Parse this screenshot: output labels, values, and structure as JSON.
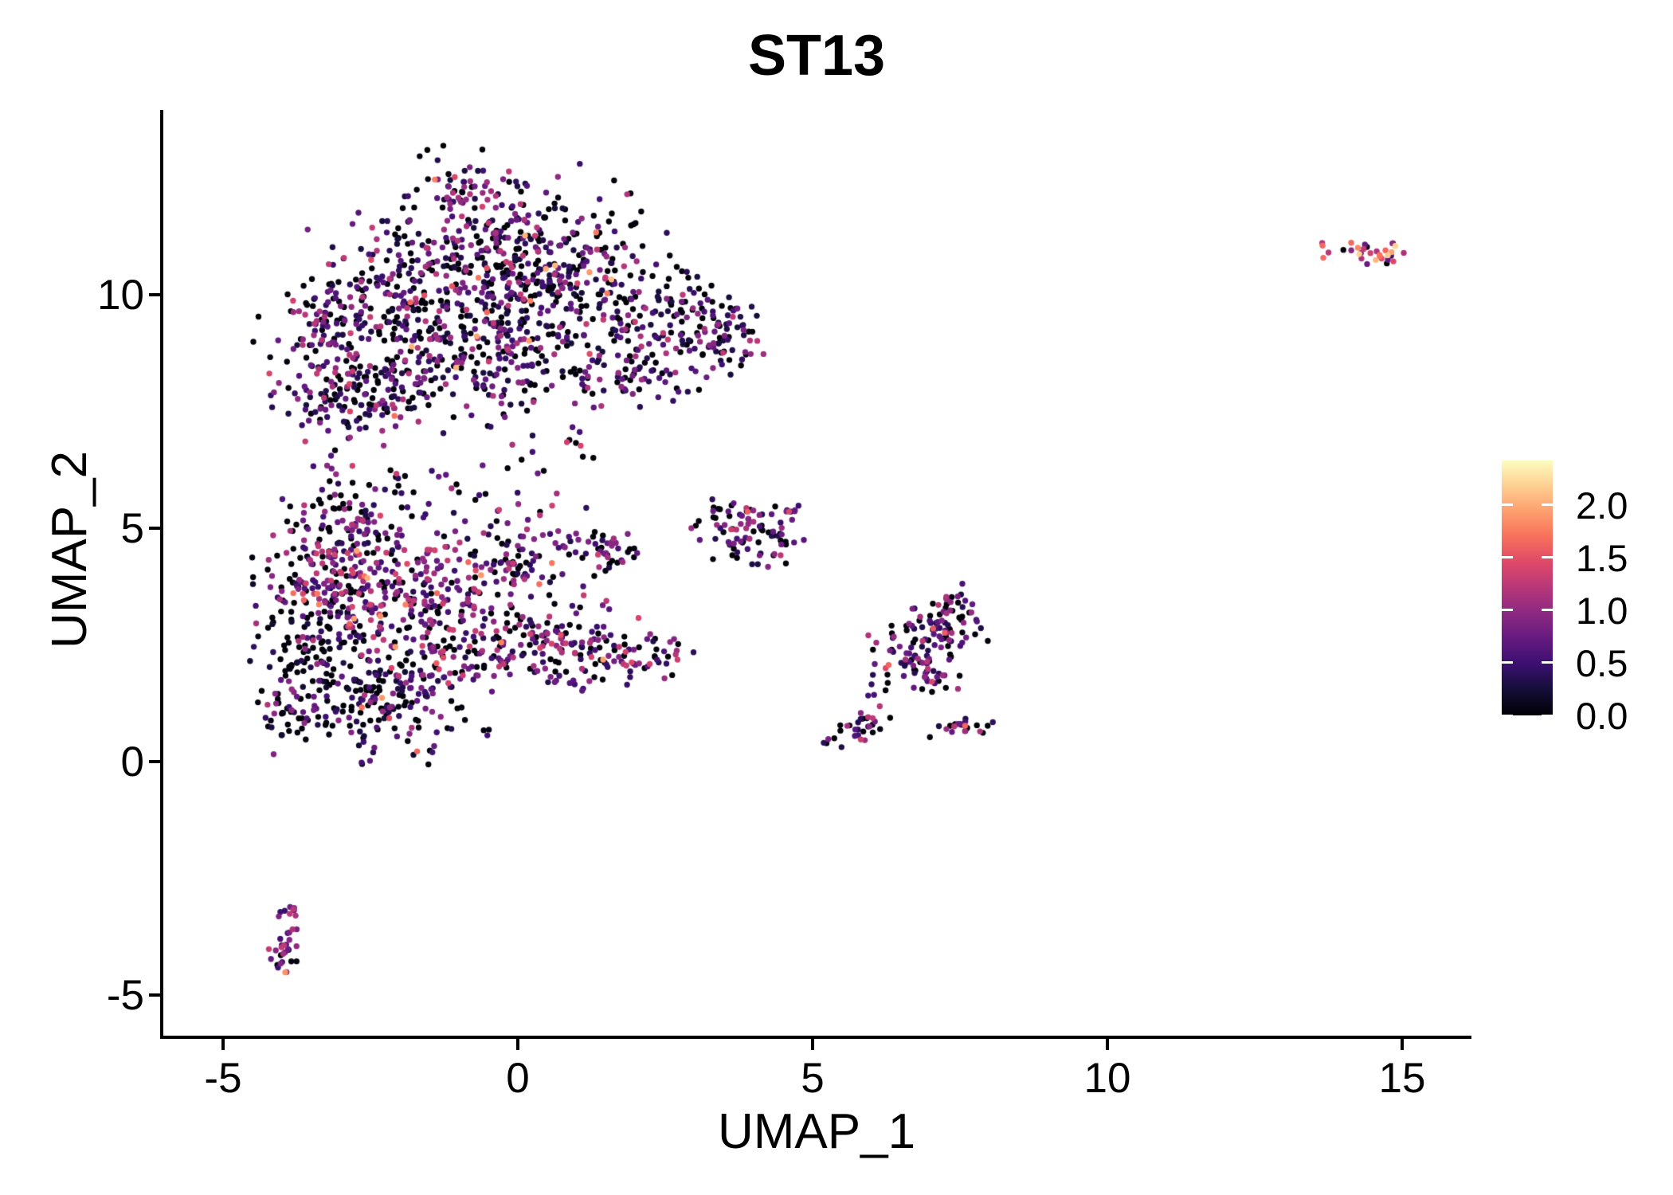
{
  "chart_data": {
    "type": "scatter",
    "title": "ST13",
    "xlabel": "UMAP_1",
    "ylabel": "UMAP_2",
    "background": "#ffffff",
    "axis_color": "#000000",
    "grid": false,
    "xlim": [
      -6.0,
      16.15
    ],
    "ylim": [
      -5.9,
      13.9
    ],
    "x_axis": {
      "title": "UMAP_1",
      "ticks": [
        {
          "v": -5,
          "label": "-5"
        },
        {
          "v": 0,
          "label": "0"
        },
        {
          "v": 5,
          "label": "5"
        },
        {
          "v": 10,
          "label": "10"
        },
        {
          "v": 15,
          "label": "15"
        }
      ]
    },
    "y_axis": {
      "title": "UMAP_2",
      "ticks": [
        {
          "v": -5,
          "label": "-5"
        },
        {
          "v": 0,
          "label": "0"
        },
        {
          "v": 5,
          "label": "5"
        },
        {
          "v": 10,
          "label": "10"
        }
      ]
    },
    "legend": {
      "position": "right",
      "colormap": "magma",
      "min_value": 0.0,
      "max_value": 2.42,
      "ticks": [
        {
          "v": 0.0,
          "label": "0.0"
        },
        {
          "v": 0.5,
          "label": "0.5"
        },
        {
          "v": 1.0,
          "label": "1.0"
        },
        {
          "v": 1.5,
          "label": "1.5"
        },
        {
          "v": 2.0,
          "label": "2.0"
        }
      ],
      "colors": [
        "#000004",
        "#140e36",
        "#3b0f70",
        "#641a80",
        "#8c2981",
        "#b73779",
        "#de4968",
        "#f7705c",
        "#fe9f6d",
        "#fecf92",
        "#fcfdbf"
      ]
    },
    "point_radius_px": 3.7,
    "expression_profiles": {
      "standard": {
        "p0": 0.36,
        "vmin": 0.25,
        "vrange": 1.05,
        "pow": 1.6,
        "hot_p": 0.03,
        "hot_min": 1.3,
        "hot_range": 0.8
      },
      "mid": {
        "p0": 0.3,
        "vmin": 0.3,
        "vrange": 1.1,
        "pow": 1.4,
        "hot_p": 0.05,
        "hot_min": 1.3,
        "hot_range": 0.7
      },
      "hot": {
        "p0": 0.15,
        "vmin": 0.4,
        "vrange": 1.0,
        "pow": 1.2,
        "hot_p": 0.1,
        "hot_min": 1.4,
        "hot_range": 0.7
      },
      "dark": {
        "p0": 0.48,
        "vmin": 0.2,
        "vrange": 1.0,
        "pow": 1.8,
        "hot_p": 0.02,
        "hot_min": 1.3,
        "hot_range": 0.6
      },
      "small_mid": {
        "p0": 0.42,
        "vmin": 0.3,
        "vrange": 1.0,
        "pow": 1.5,
        "hot_p": 0.04,
        "hot_min": 1.3,
        "hot_range": 0.5
      },
      "elong": {
        "p0": 0.32,
        "vmin": 0.3,
        "vrange": 0.95,
        "pow": 1.5,
        "hot_p": 0.04,
        "hot_min": 1.3,
        "hot_range": 0.4
      },
      "tinyhot": {
        "p0": 0.12,
        "vmin": 0.45,
        "vrange": 0.85,
        "pow": 1.0,
        "hot_p": 0.06,
        "hot_min": 1.7,
        "hot_range": 0.3
      },
      "bright": {
        "p0": 0.12,
        "vmin": 0.4,
        "vrange": 1.3,
        "pow": 0.9,
        "hot_p": 0.25,
        "hot_min": 1.6,
        "hot_range": 0.75
      }
    },
    "clusters": [
      {
        "name": "top-large-cluster",
        "blobs": [
          [
            -0.9,
            12.35,
            0.5,
            0.4,
            55,
            "standard"
          ],
          [
            -0.1,
            11.2,
            1.05,
            0.7,
            190,
            "standard"
          ],
          [
            -2.0,
            9.8,
            0.9,
            0.8,
            180,
            "standard"
          ],
          [
            -3.35,
            9.2,
            0.5,
            0.7,
            100,
            "standard"
          ],
          [
            -0.6,
            9.9,
            1.0,
            0.85,
            190,
            "standard"
          ],
          [
            1.0,
            10.3,
            0.9,
            0.75,
            150,
            "standard"
          ],
          [
            2.3,
            9.4,
            0.75,
            0.65,
            120,
            "standard"
          ],
          [
            3.3,
            9.0,
            0.5,
            0.5,
            60,
            "standard"
          ],
          [
            -1.6,
            8.1,
            0.8,
            0.5,
            85,
            "standard"
          ],
          [
            0.3,
            8.4,
            0.8,
            0.5,
            85,
            "standard"
          ],
          [
            1.8,
            8.3,
            0.5,
            0.4,
            45,
            "standard"
          ],
          [
            -3.2,
            7.8,
            0.5,
            0.4,
            45,
            "standard"
          ],
          [
            -2.6,
            7.8,
            0.55,
            0.35,
            50,
            "standard"
          ],
          [
            3.85,
            9.2,
            0.15,
            0.45,
            12,
            "standard"
          ]
        ]
      },
      {
        "name": "neck-sparse",
        "blobs": [
          [
            -3.0,
            6.1,
            0.3,
            0.8,
            26,
            "mid"
          ],
          [
            -2.3,
            5.8,
            0.35,
            0.55,
            14,
            "mid"
          ],
          [
            -1.1,
            5.6,
            0.5,
            0.45,
            14,
            "mid"
          ],
          [
            0.3,
            6.1,
            0.4,
            0.6,
            16,
            "mid"
          ],
          [
            1.2,
            6.9,
            0.3,
            0.4,
            9,
            "mid"
          ]
        ]
      },
      {
        "name": "left-lower-cluster",
        "blobs": [
          [
            -2.4,
            3.9,
            0.8,
            0.7,
            210,
            "hot"
          ],
          [
            -3.5,
            2.7,
            0.5,
            1.0,
            160,
            "dark"
          ],
          [
            -2.2,
            1.2,
            0.8,
            0.55,
            170,
            "dark"
          ],
          [
            -1.0,
            2.7,
            0.9,
            0.7,
            190,
            "mid"
          ],
          [
            -2.8,
            4.9,
            0.6,
            0.45,
            80,
            "mid"
          ],
          [
            -0.1,
            4.3,
            0.65,
            0.45,
            100,
            "mid"
          ],
          [
            1.35,
            4.55,
            0.3,
            0.28,
            45,
            "mid"
          ],
          [
            0.5,
            2.6,
            0.6,
            0.5,
            90,
            "mid"
          ],
          [
            1.7,
            2.3,
            0.45,
            0.4,
            55,
            "mid"
          ],
          [
            2.4,
            2.4,
            0.15,
            0.22,
            10,
            "mid"
          ],
          [
            2.8,
            2.35,
            0.25,
            0.2,
            6,
            "mid"
          ],
          [
            -3.95,
            0.9,
            0.18,
            0.38,
            22,
            "dark"
          ]
        ]
      },
      {
        "name": "small-middle-cluster",
        "blobs": [
          [
            3.6,
            5.0,
            0.3,
            0.3,
            40,
            "small_mid"
          ],
          [
            4.3,
            4.8,
            0.3,
            0.3,
            35,
            "small_mid"
          ],
          [
            3.9,
            5.45,
            0.25,
            0.15,
            12,
            "small_mid"
          ],
          [
            4.6,
            5.35,
            0.12,
            0.12,
            8,
            "small_mid"
          ]
        ]
      },
      {
        "name": "right-elongated-cluster",
        "blobs": [
          [
            7.1,
            2.8,
            0.4,
            0.35,
            70,
            "elong"
          ],
          [
            6.55,
            2.3,
            0.3,
            0.3,
            35,
            "elong"
          ],
          [
            7.0,
            1.9,
            0.3,
            0.25,
            25,
            "elong"
          ],
          [
            7.45,
            3.35,
            0.22,
            0.22,
            14,
            "elong"
          ],
          [
            5.6,
            0.55,
            0.22,
            0.16,
            14,
            "elong"
          ],
          [
            5.95,
            0.8,
            0.22,
            0.16,
            14,
            "elong"
          ],
          [
            7.55,
            0.78,
            0.3,
            0.12,
            22,
            "elong"
          ],
          [
            6.1,
            1.5,
            0.3,
            0.25,
            10,
            "elong"
          ]
        ]
      },
      {
        "name": "bottom-left-tiny-cluster",
        "blobs": [
          [
            -3.85,
            -3.35,
            0.12,
            0.22,
            12,
            "tinyhot"
          ],
          [
            -3.95,
            -3.85,
            0.1,
            0.18,
            9,
            "tinyhot"
          ],
          [
            -4.0,
            -4.25,
            0.13,
            0.22,
            15,
            "tinyhot"
          ]
        ]
      },
      {
        "name": "far-right-cluster",
        "blobs": [
          [
            14.35,
            10.95,
            0.38,
            0.16,
            32,
            "bright"
          ]
        ]
      }
    ]
  }
}
